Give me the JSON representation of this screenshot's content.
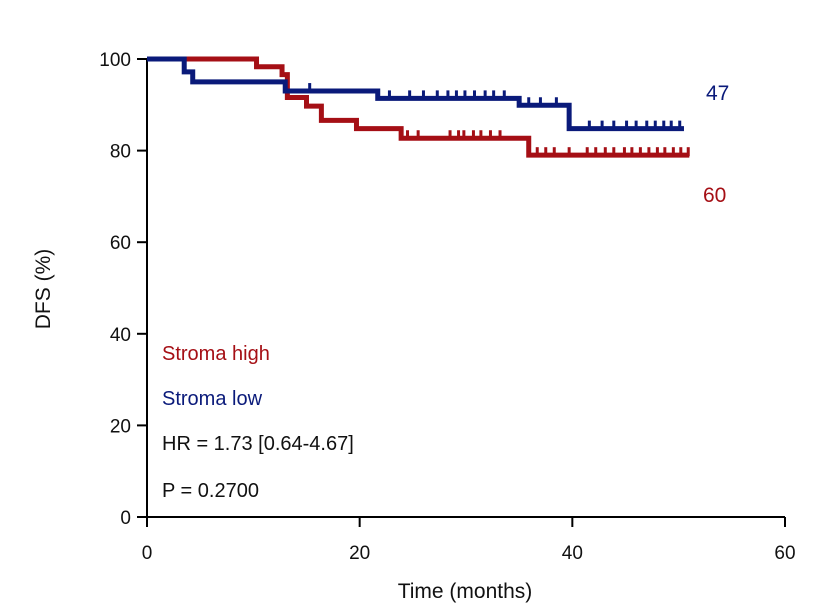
{
  "chart_data": {
    "type": "line",
    "subtype": "kaplan-meier",
    "title": "",
    "xlabel": "Time (months)",
    "ylabel": "DFS (%)",
    "xlim": [
      0,
      60
    ],
    "ylim": [
      0,
      100
    ],
    "x_ticks": [
      "0",
      "20",
      "40",
      "60"
    ],
    "y_ticks": [
      "0",
      "20",
      "40",
      "60",
      "80",
      "100"
    ],
    "grid": false,
    "series": [
      {
        "name": "Stroma high",
        "color": "#a50f15",
        "end_label": "60",
        "steps": [
          [
            0,
            100
          ],
          [
            10.3,
            98.3
          ],
          [
            12.7,
            96.6
          ],
          [
            13.2,
            91.6
          ],
          [
            15.0,
            89.7
          ],
          [
            16.4,
            86.6
          ],
          [
            19.7,
            84.8
          ],
          [
            23.9,
            82.7
          ],
          [
            35.9,
            79.0
          ],
          [
            51.0,
            79.0
          ]
        ],
        "censors": [
          [
            24.5,
            82.7
          ],
          [
            25.5,
            82.7
          ],
          [
            28.5,
            82.7
          ],
          [
            29.3,
            82.7
          ],
          [
            29.8,
            82.7
          ],
          [
            30.7,
            82.7
          ],
          [
            31.4,
            82.7
          ],
          [
            32.3,
            82.7
          ],
          [
            33.2,
            82.7
          ],
          [
            36.7,
            79.0
          ],
          [
            37.5,
            79.0
          ],
          [
            38.3,
            79.0
          ],
          [
            39.7,
            79.0
          ],
          [
            41.4,
            79.0
          ],
          [
            42.2,
            79.0
          ],
          [
            43.1,
            79.0
          ],
          [
            43.9,
            79.0
          ],
          [
            44.9,
            79.0
          ],
          [
            45.6,
            79.0
          ],
          [
            46.4,
            79.0
          ],
          [
            47.2,
            79.0
          ],
          [
            48.0,
            79.0
          ],
          [
            48.7,
            79.0
          ],
          [
            49.5,
            79.0
          ],
          [
            50.2,
            79.0
          ],
          [
            50.9,
            79.0
          ]
        ]
      },
      {
        "name": "Stroma low",
        "color": "#0a1a7a",
        "end_label": "47",
        "steps": [
          [
            0,
            100
          ],
          [
            3.5,
            97.2
          ],
          [
            4.3,
            95.0
          ],
          [
            13.0,
            93.0
          ],
          [
            21.7,
            91.4
          ],
          [
            35.0,
            89.9
          ],
          [
            39.7,
            84.8
          ],
          [
            50.5,
            84.8
          ]
        ],
        "censors": [
          [
            15.3,
            93.0
          ],
          [
            22.8,
            91.4
          ],
          [
            24.7,
            91.4
          ],
          [
            26.0,
            91.4
          ],
          [
            27.3,
            91.4
          ],
          [
            28.3,
            91.4
          ],
          [
            29.1,
            91.4
          ],
          [
            29.9,
            91.4
          ],
          [
            30.8,
            91.4
          ],
          [
            31.8,
            91.4
          ],
          [
            32.6,
            91.4
          ],
          [
            33.6,
            91.4
          ],
          [
            35.9,
            89.9
          ],
          [
            37.0,
            89.9
          ],
          [
            38.5,
            89.9
          ],
          [
            41.6,
            84.8
          ],
          [
            42.8,
            84.8
          ],
          [
            43.9,
            84.8
          ],
          [
            45.1,
            84.8
          ],
          [
            46.0,
            84.8
          ],
          [
            47.0,
            84.8
          ],
          [
            47.8,
            84.8
          ],
          [
            48.6,
            84.8
          ],
          [
            49.3,
            84.8
          ],
          [
            50.1,
            84.8
          ]
        ]
      }
    ],
    "annotations": {
      "legend_high": "Stroma high",
      "legend_low": "Stroma low",
      "hr": "HR = 1.73 [0.64-4.67]",
      "p": "P = 0.2700"
    }
  }
}
